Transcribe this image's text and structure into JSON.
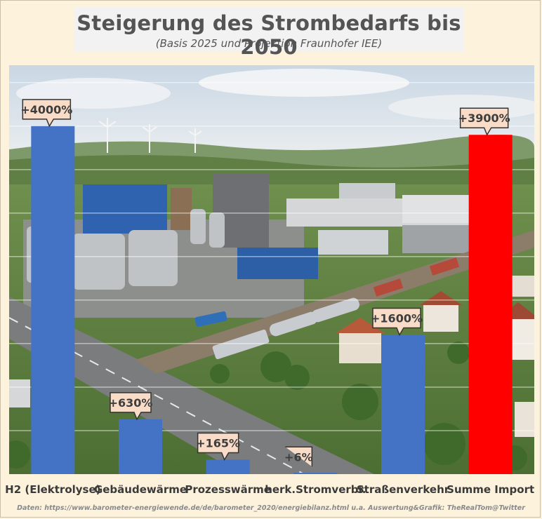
{
  "title": "Steigerung des Strombedarfs bis 2050",
  "subtitle": "(Basis 2025 und Projektion Fraunhofer IEE)",
  "footer": "Daten: https://www.barometer-energiewende.de/de/barometer_2020/energiebilanz.html u.a.   Auswertung&Grafik: TheRealTom@Twitter",
  "colors": {
    "bar_blue": "#4472c4",
    "bar_red": "#ff0000",
    "callout_fill": "#f8dcc8",
    "callout_border": "#333333",
    "background": "#fdf2dc"
  },
  "chart_data": {
    "type": "bar",
    "categories": [
      "H2 (Elektrolyse)",
      "Gebäudewärme",
      "Prozesswärme",
      "herk.Stromverbr.",
      "Straßenverkehr",
      "Summe Import"
    ],
    "values": [
      4000,
      630,
      165,
      6,
      1600,
      3900
    ],
    "data_labels": [
      "+4000%",
      "+630%",
      "+165%",
      "+6%",
      "+1600%",
      "+3900%"
    ],
    "bar_colors": [
      "#4472c4",
      "#4472c4",
      "#4472c4",
      "#4472c4",
      "#4472c4",
      "#ff0000"
    ],
    "ylim": [
      0,
      4700
    ],
    "grid": true,
    "title": "Steigerung des Strombedarfs bis 2050",
    "xlabel": "",
    "ylabel": ""
  }
}
